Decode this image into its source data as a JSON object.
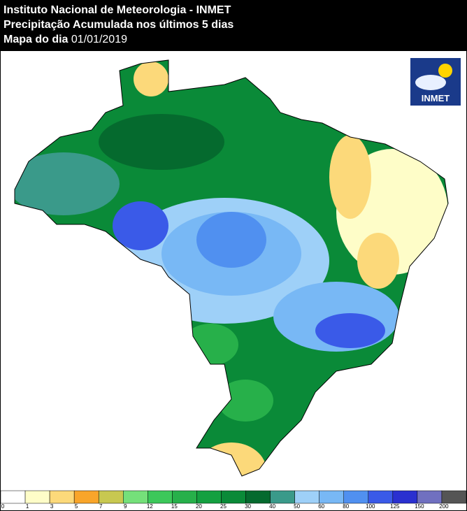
{
  "header": {
    "title": "Instituto Nacional de Meteorologia - INMET",
    "subtitle": "Precipitação Acumulada nos últimos 5 dias",
    "date_label": "Mapa do dia",
    "date": "01/01/2019"
  },
  "logo": {
    "text": "INMET"
  },
  "legend": {
    "ticks": [
      0,
      1,
      3,
      5,
      7,
      9,
      12,
      15,
      20,
      25,
      30,
      40,
      50,
      60,
      80,
      100,
      125,
      150,
      200
    ],
    "colors": [
      "#ffffff",
      "#fefdc8",
      "#fcd97a",
      "#f9a52a",
      "#c8c850",
      "#75e07a",
      "#3cc85a",
      "#27b04a",
      "#14a040",
      "#0a8a38",
      "#056a2e",
      "#3a9a8a",
      "#9ed0f8",
      "#78b8f5",
      "#5090f0",
      "#3a5ae8",
      "#2a30d0",
      "#7070c0",
      "#555555"
    ]
  }
}
